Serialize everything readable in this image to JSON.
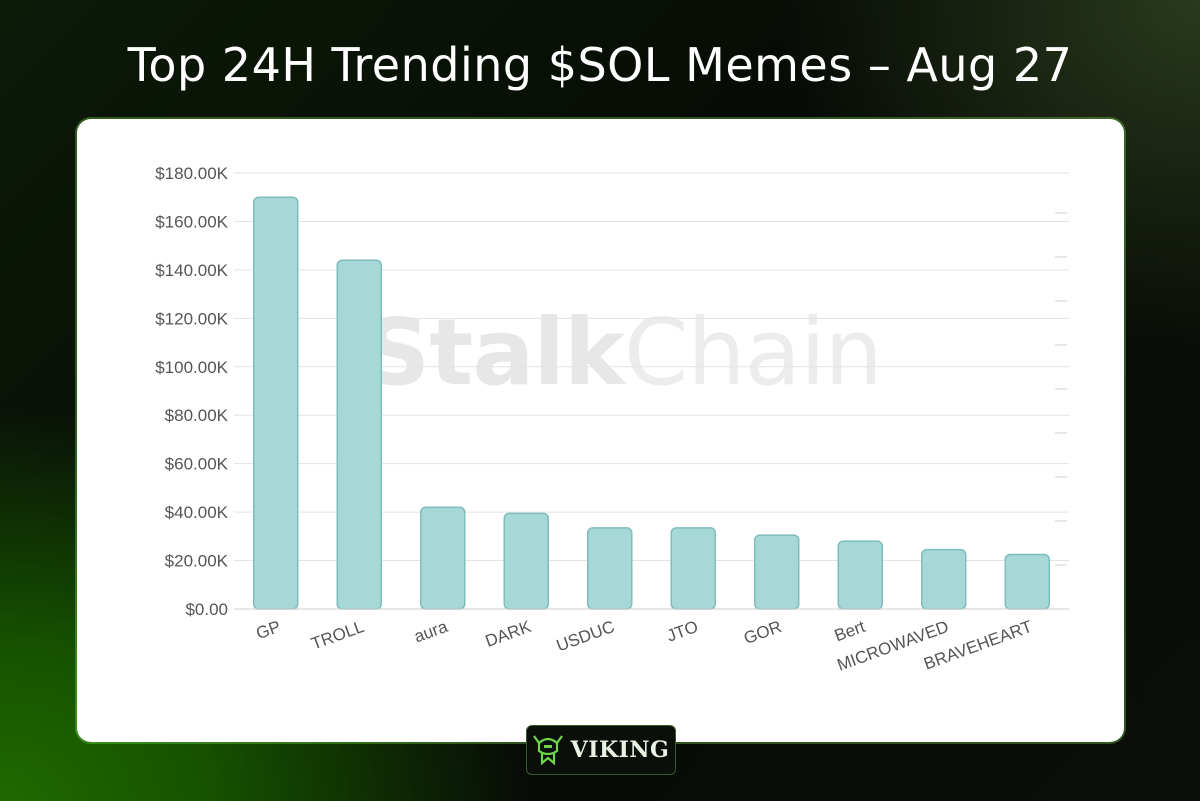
{
  "header": {
    "title": "Top 24H Trending $SOL Memes – Aug 27"
  },
  "watermark": {
    "bold": "Stalk",
    "light": "Chain"
  },
  "badge": {
    "label": "VIKING",
    "icon": "viking-helmet-icon"
  },
  "colors": {
    "bar_fill": "#a7d8d8",
    "bar_stroke": "#7fbcbc",
    "grid": "#e3e3e3",
    "accent": "#3db83d"
  },
  "chart_data": {
    "type": "bar",
    "categories": [
      "GP",
      "TROLL",
      "aura",
      "DARK",
      "USDUC",
      "JTO",
      "GOR",
      "Bert",
      "MICROWAVED",
      "BRAVEHEART"
    ],
    "values": [
      170000,
      144000,
      42000,
      39500,
      33500,
      33500,
      30500,
      28000,
      24500,
      22500
    ],
    "ylim": [
      0,
      180000
    ],
    "yticks": [
      0,
      20000,
      40000,
      60000,
      80000,
      100000,
      120000,
      140000,
      160000,
      180000
    ],
    "ytick_labels": [
      "$0.00",
      "$20.00K",
      "$40.00K",
      "$60.00K",
      "$80.00K",
      "$100.00K",
      "$120.00K",
      "$140.00K",
      "$160.00K",
      "$180.00K"
    ],
    "grid": true,
    "legend": "none"
  }
}
